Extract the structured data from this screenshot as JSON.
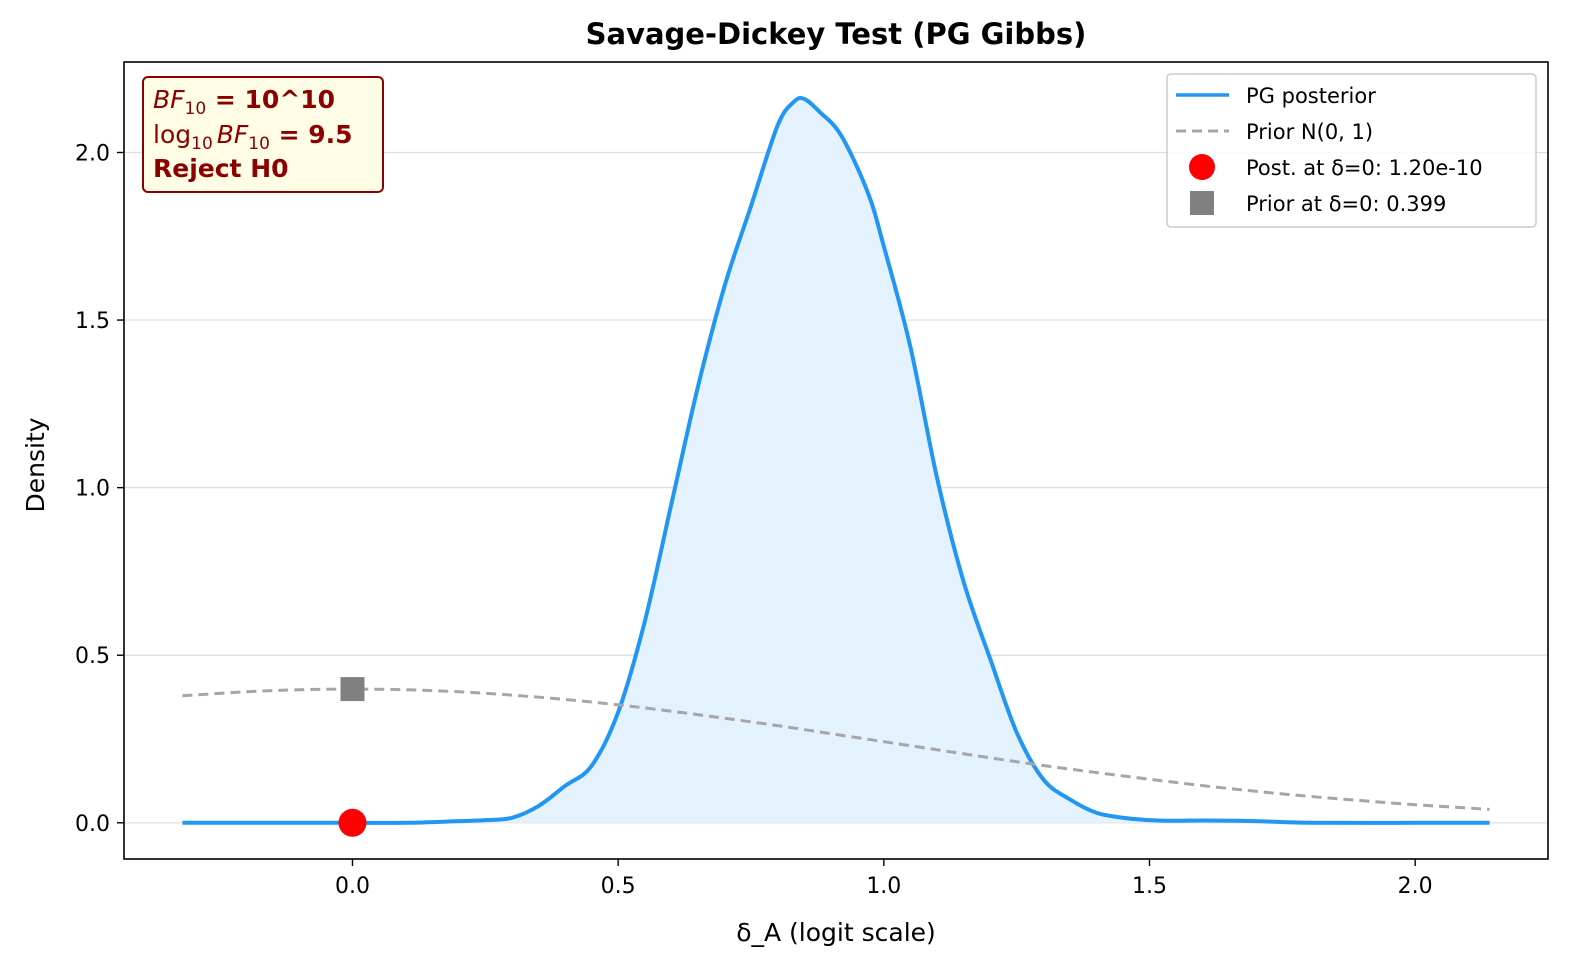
{
  "chart_data": {
    "type": "line",
    "title": "Savage-Dickey Test (PG Gibbs)",
    "xlabel": "δ_A (logit scale)",
    "ylabel": "Density",
    "xlim": [
      -0.43,
      2.25
    ],
    "ylim": [
      -0.108,
      2.27
    ],
    "xticks": [
      0.0,
      0.5,
      1.0,
      1.5,
      2.0
    ],
    "xtick_labels": [
      "0.0",
      "0.5",
      "1.0",
      "1.5",
      "2.0"
    ],
    "yticks": [
      0.0,
      0.5,
      1.0,
      1.5,
      2.0
    ],
    "ytick_labels": [
      "0.0",
      "0.5",
      "1.0",
      "1.5",
      "2.0"
    ],
    "grid": "horizontal",
    "legend_position": "upper right",
    "series": [
      {
        "name": "PG posterior",
        "style": "solid",
        "color": "#2196f3",
        "fill": "#e3f2fd",
        "x": [
          -0.32,
          -0.2,
          -0.1,
          0.0,
          0.1,
          0.2,
          0.25,
          0.3,
          0.35,
          0.4,
          0.45,
          0.5,
          0.55,
          0.6,
          0.65,
          0.7,
          0.75,
          0.8,
          0.83,
          0.85,
          0.88,
          0.92,
          0.97,
          1.0,
          1.05,
          1.1,
          1.15,
          1.2,
          1.25,
          1.3,
          1.35,
          1.4,
          1.45,
          1.5,
          1.55,
          1.6,
          1.7,
          1.8,
          2.0,
          2.14
        ],
        "y": [
          0.0,
          0.0,
          0.0,
          0.0,
          0.0,
          0.005,
          0.008,
          0.015,
          0.05,
          0.11,
          0.17,
          0.33,
          0.6,
          0.95,
          1.3,
          1.6,
          1.84,
          2.08,
          2.15,
          2.16,
          2.12,
          2.05,
          1.88,
          1.72,
          1.42,
          1.03,
          0.72,
          0.49,
          0.27,
          0.13,
          0.07,
          0.03,
          0.015,
          0.008,
          0.006,
          0.007,
          0.005,
          0.0,
          0.0,
          0.0
        ]
      },
      {
        "name": "Prior N(0, 1)",
        "style": "dashed",
        "color": "#a6a6a6",
        "x": [
          -0.32,
          -0.2,
          -0.1,
          0.0,
          0.1,
          0.2,
          0.3,
          0.4,
          0.5,
          0.6,
          0.7,
          0.8,
          0.9,
          1.0,
          1.1,
          1.2,
          1.3,
          1.4,
          1.5,
          1.6,
          1.7,
          1.8,
          1.9,
          2.0,
          2.14
        ],
        "y": [
          0.379,
          0.391,
          0.397,
          0.399,
          0.397,
          0.391,
          0.381,
          0.368,
          0.352,
          0.333,
          0.312,
          0.29,
          0.266,
          0.242,
          0.218,
          0.194,
          0.171,
          0.15,
          0.13,
          0.111,
          0.094,
          0.079,
          0.066,
          0.054,
          0.04
        ]
      }
    ],
    "markers": [
      {
        "name": "Post. at δ=0: 1.20e-10",
        "shape": "circle",
        "color": "#ff0000",
        "x": 0.0,
        "y": 1.2e-10
      },
      {
        "name": "Prior at δ=0: 0.399",
        "shape": "square",
        "color": "#808080",
        "x": 0.0,
        "y": 0.399
      }
    ],
    "annotation": {
      "line1_var": "BF",
      "line1_sub": "10",
      "line1_rest": " = 10^10",
      "line2_log": "log",
      "line2_logsub": "10",
      "line2_var": "BF",
      "line2_sub": "10",
      "line2_rest": " = 9.5",
      "line3": "Reject H0",
      "border_color": "#8b0000",
      "background": "#fffde6"
    }
  }
}
